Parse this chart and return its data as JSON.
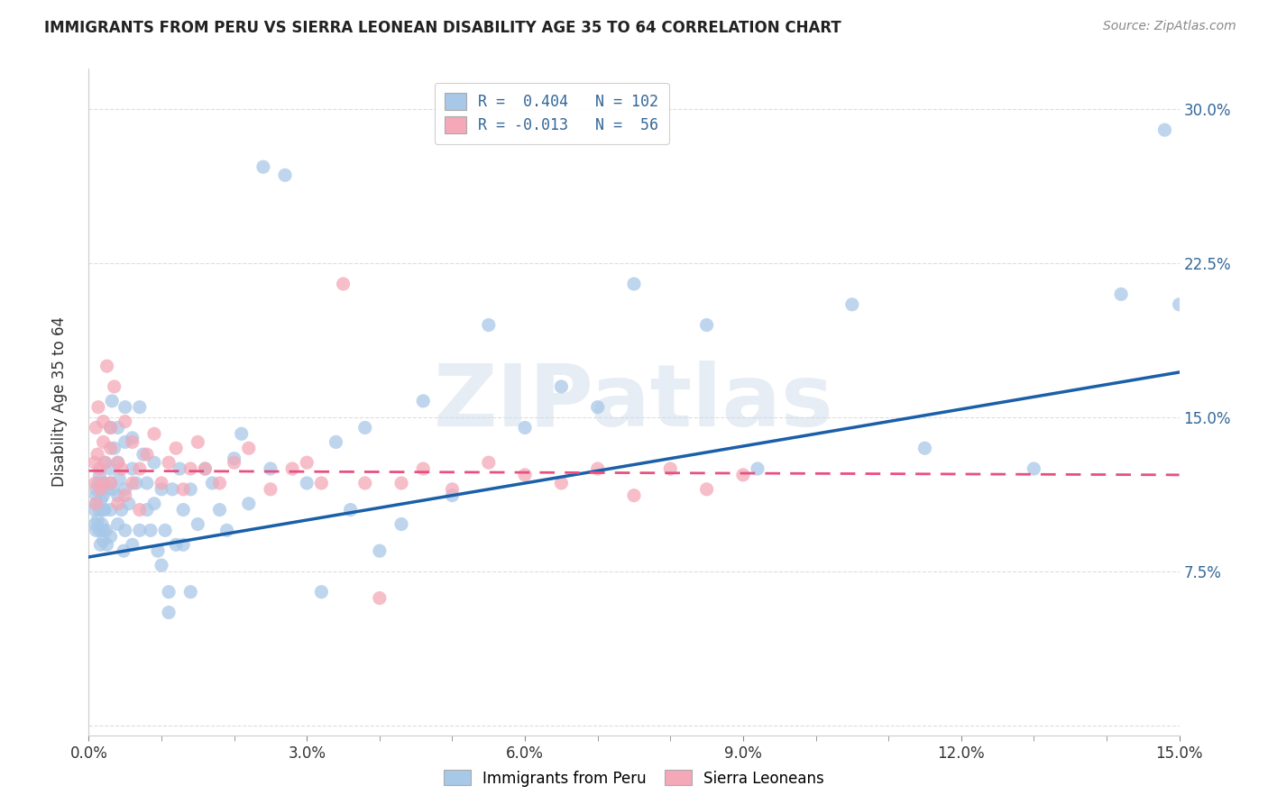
{
  "title": "IMMIGRANTS FROM PERU VS SIERRA LEONEAN DISABILITY AGE 35 TO 64 CORRELATION CHART",
  "source": "Source: ZipAtlas.com",
  "ylabel": "Disability Age 35 to 64",
  "xlim": [
    0.0,
    0.15
  ],
  "ylim": [
    -0.005,
    0.32
  ],
  "xtick_vals": [
    0.0,
    0.03,
    0.06,
    0.09,
    0.12,
    0.15
  ],
  "xtick_labels": [
    "0.0%",
    "3.0%",
    "6.0%",
    "9.0%",
    "12.0%",
    "15.0%"
  ],
  "ytick_vals": [
    0.0,
    0.075,
    0.15,
    0.225,
    0.3
  ],
  "ytick_labels": [
    "",
    "7.5%",
    "15.0%",
    "22.5%",
    "30.0%"
  ],
  "legend_labels": [
    "Immigrants from Peru",
    "Sierra Leoneans"
  ],
  "blue_color": "#a8c8e8",
  "pink_color": "#f4a8b8",
  "blue_line_color": "#1a5fa8",
  "pink_line_color": "#e85080",
  "R_peru": 0.404,
  "N_peru": 102,
  "R_sierra": -0.013,
  "N_sierra": 56,
  "blue_line_x0": 0.0,
  "blue_line_y0": 0.082,
  "blue_line_x1": 0.15,
  "blue_line_y1": 0.172,
  "pink_line_x0": 0.0,
  "pink_line_x1": 0.15,
  "pink_line_y0": 0.124,
  "pink_line_y1": 0.122,
  "watermark": "ZIPatlas",
  "background_color": "#ffffff",
  "grid_color": "#dddddd",
  "peru_x": [
    0.0008,
    0.0009,
    0.001,
    0.001,
    0.001,
    0.001,
    0.0012,
    0.0013,
    0.0015,
    0.0015,
    0.0015,
    0.0016,
    0.0017,
    0.0018,
    0.002,
    0.002,
    0.002,
    0.002,
    0.002,
    0.0022,
    0.0023,
    0.0024,
    0.0025,
    0.0025,
    0.003,
    0.003,
    0.003,
    0.003,
    0.003,
    0.0032,
    0.0033,
    0.0035,
    0.004,
    0.004,
    0.004,
    0.004,
    0.0042,
    0.0045,
    0.0048,
    0.005,
    0.005,
    0.005,
    0.005,
    0.0055,
    0.006,
    0.006,
    0.006,
    0.0065,
    0.007,
    0.007,
    0.0075,
    0.008,
    0.008,
    0.0085,
    0.009,
    0.009,
    0.0095,
    0.01,
    0.01,
    0.0105,
    0.011,
    0.011,
    0.0115,
    0.012,
    0.0125,
    0.013,
    0.013,
    0.014,
    0.014,
    0.015,
    0.016,
    0.017,
    0.018,
    0.019,
    0.02,
    0.021,
    0.022,
    0.024,
    0.025,
    0.027,
    0.03,
    0.032,
    0.034,
    0.036,
    0.038,
    0.04,
    0.043,
    0.046,
    0.05,
    0.055,
    0.06,
    0.065,
    0.07,
    0.075,
    0.085,
    0.092,
    0.105,
    0.115,
    0.13,
    0.142,
    0.148,
    0.15
  ],
  "peru_y": [
    0.105,
    0.098,
    0.115,
    0.108,
    0.095,
    0.112,
    0.1,
    0.118,
    0.105,
    0.095,
    0.122,
    0.088,
    0.11,
    0.098,
    0.095,
    0.105,
    0.112,
    0.09,
    0.118,
    0.105,
    0.128,
    0.095,
    0.115,
    0.088,
    0.118,
    0.125,
    0.105,
    0.145,
    0.092,
    0.158,
    0.115,
    0.135,
    0.128,
    0.112,
    0.145,
    0.098,
    0.12,
    0.105,
    0.085,
    0.115,
    0.138,
    0.095,
    0.155,
    0.108,
    0.125,
    0.14,
    0.088,
    0.118,
    0.155,
    0.095,
    0.132,
    0.105,
    0.118,
    0.095,
    0.128,
    0.108,
    0.085,
    0.115,
    0.078,
    0.095,
    0.065,
    0.055,
    0.115,
    0.088,
    0.125,
    0.105,
    0.088,
    0.115,
    0.065,
    0.098,
    0.125,
    0.118,
    0.105,
    0.095,
    0.13,
    0.142,
    0.108,
    0.272,
    0.125,
    0.268,
    0.118,
    0.065,
    0.138,
    0.105,
    0.145,
    0.085,
    0.098,
    0.158,
    0.112,
    0.195,
    0.145,
    0.165,
    0.155,
    0.215,
    0.195,
    0.125,
    0.205,
    0.135,
    0.125,
    0.21,
    0.29,
    0.205
  ],
  "sierra_x": [
    0.0008,
    0.0009,
    0.001,
    0.001,
    0.0012,
    0.0013,
    0.0015,
    0.0016,
    0.002,
    0.002,
    0.002,
    0.0022,
    0.0025,
    0.003,
    0.003,
    0.003,
    0.0035,
    0.004,
    0.004,
    0.0045,
    0.005,
    0.005,
    0.006,
    0.006,
    0.007,
    0.007,
    0.008,
    0.009,
    0.01,
    0.011,
    0.012,
    0.013,
    0.014,
    0.015,
    0.016,
    0.018,
    0.02,
    0.022,
    0.025,
    0.028,
    0.03,
    0.032,
    0.035,
    0.038,
    0.04,
    0.043,
    0.046,
    0.05,
    0.055,
    0.06,
    0.065,
    0.07,
    0.075,
    0.08,
    0.085,
    0.09
  ],
  "sierra_y": [
    0.128,
    0.118,
    0.145,
    0.108,
    0.132,
    0.155,
    0.125,
    0.115,
    0.138,
    0.118,
    0.148,
    0.128,
    0.175,
    0.135,
    0.118,
    0.145,
    0.165,
    0.128,
    0.108,
    0.125,
    0.148,
    0.112,
    0.138,
    0.118,
    0.125,
    0.105,
    0.132,
    0.142,
    0.118,
    0.128,
    0.135,
    0.115,
    0.125,
    0.138,
    0.125,
    0.118,
    0.128,
    0.135,
    0.115,
    0.125,
    0.128,
    0.118,
    0.215,
    0.118,
    0.062,
    0.118,
    0.125,
    0.115,
    0.128,
    0.122,
    0.118,
    0.125,
    0.112,
    0.125,
    0.115,
    0.122
  ]
}
